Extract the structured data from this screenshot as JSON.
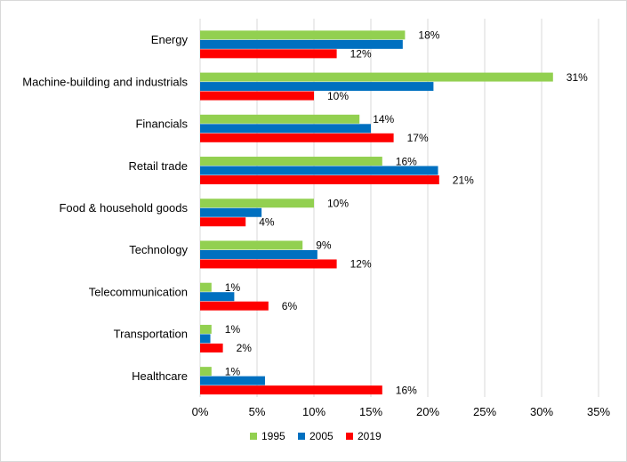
{
  "chart_data": {
    "type": "bar",
    "orientation": "horizontal",
    "categories": [
      "Energy",
      "Machine-building and industrials",
      "Financials",
      "Retail trade",
      "Food & household goods",
      "Technology",
      "Telecommunication",
      "Transportation",
      "Healthcare"
    ],
    "series": [
      {
        "name": "1995",
        "color": "#92d050",
        "values": [
          18,
          31,
          14,
          16,
          10,
          9,
          1,
          1,
          1
        ],
        "labels": [
          "18%",
          "31%",
          "14%",
          "16%",
          "10%",
          "9%",
          "1%",
          "1%",
          "1%"
        ]
      },
      {
        "name": "2005",
        "color": "#0070c0",
        "values": [
          17.8,
          20.5,
          15,
          20.9,
          5.4,
          10.3,
          3,
          0.9,
          5.7
        ],
        "labels": []
      },
      {
        "name": "2019",
        "color": "#ff0000",
        "values": [
          12,
          10,
          17,
          21,
          4,
          12,
          6,
          2,
          16
        ],
        "labels": [
          "12%",
          "10%",
          "17%",
          "21%",
          "4%",
          "12%",
          "6%",
          "2%",
          "16%"
        ]
      }
    ],
    "x_ticks": [
      0,
      5,
      10,
      15,
      20,
      25,
      30,
      35
    ],
    "x_tick_labels": [
      "0%",
      "5%",
      "10%",
      "15%",
      "20%",
      "25%",
      "30%",
      "35%"
    ],
    "xlim": [
      0,
      35
    ],
    "grid": true,
    "legend_position": "bottom",
    "title": "",
    "xlabel": "",
    "ylabel": ""
  }
}
